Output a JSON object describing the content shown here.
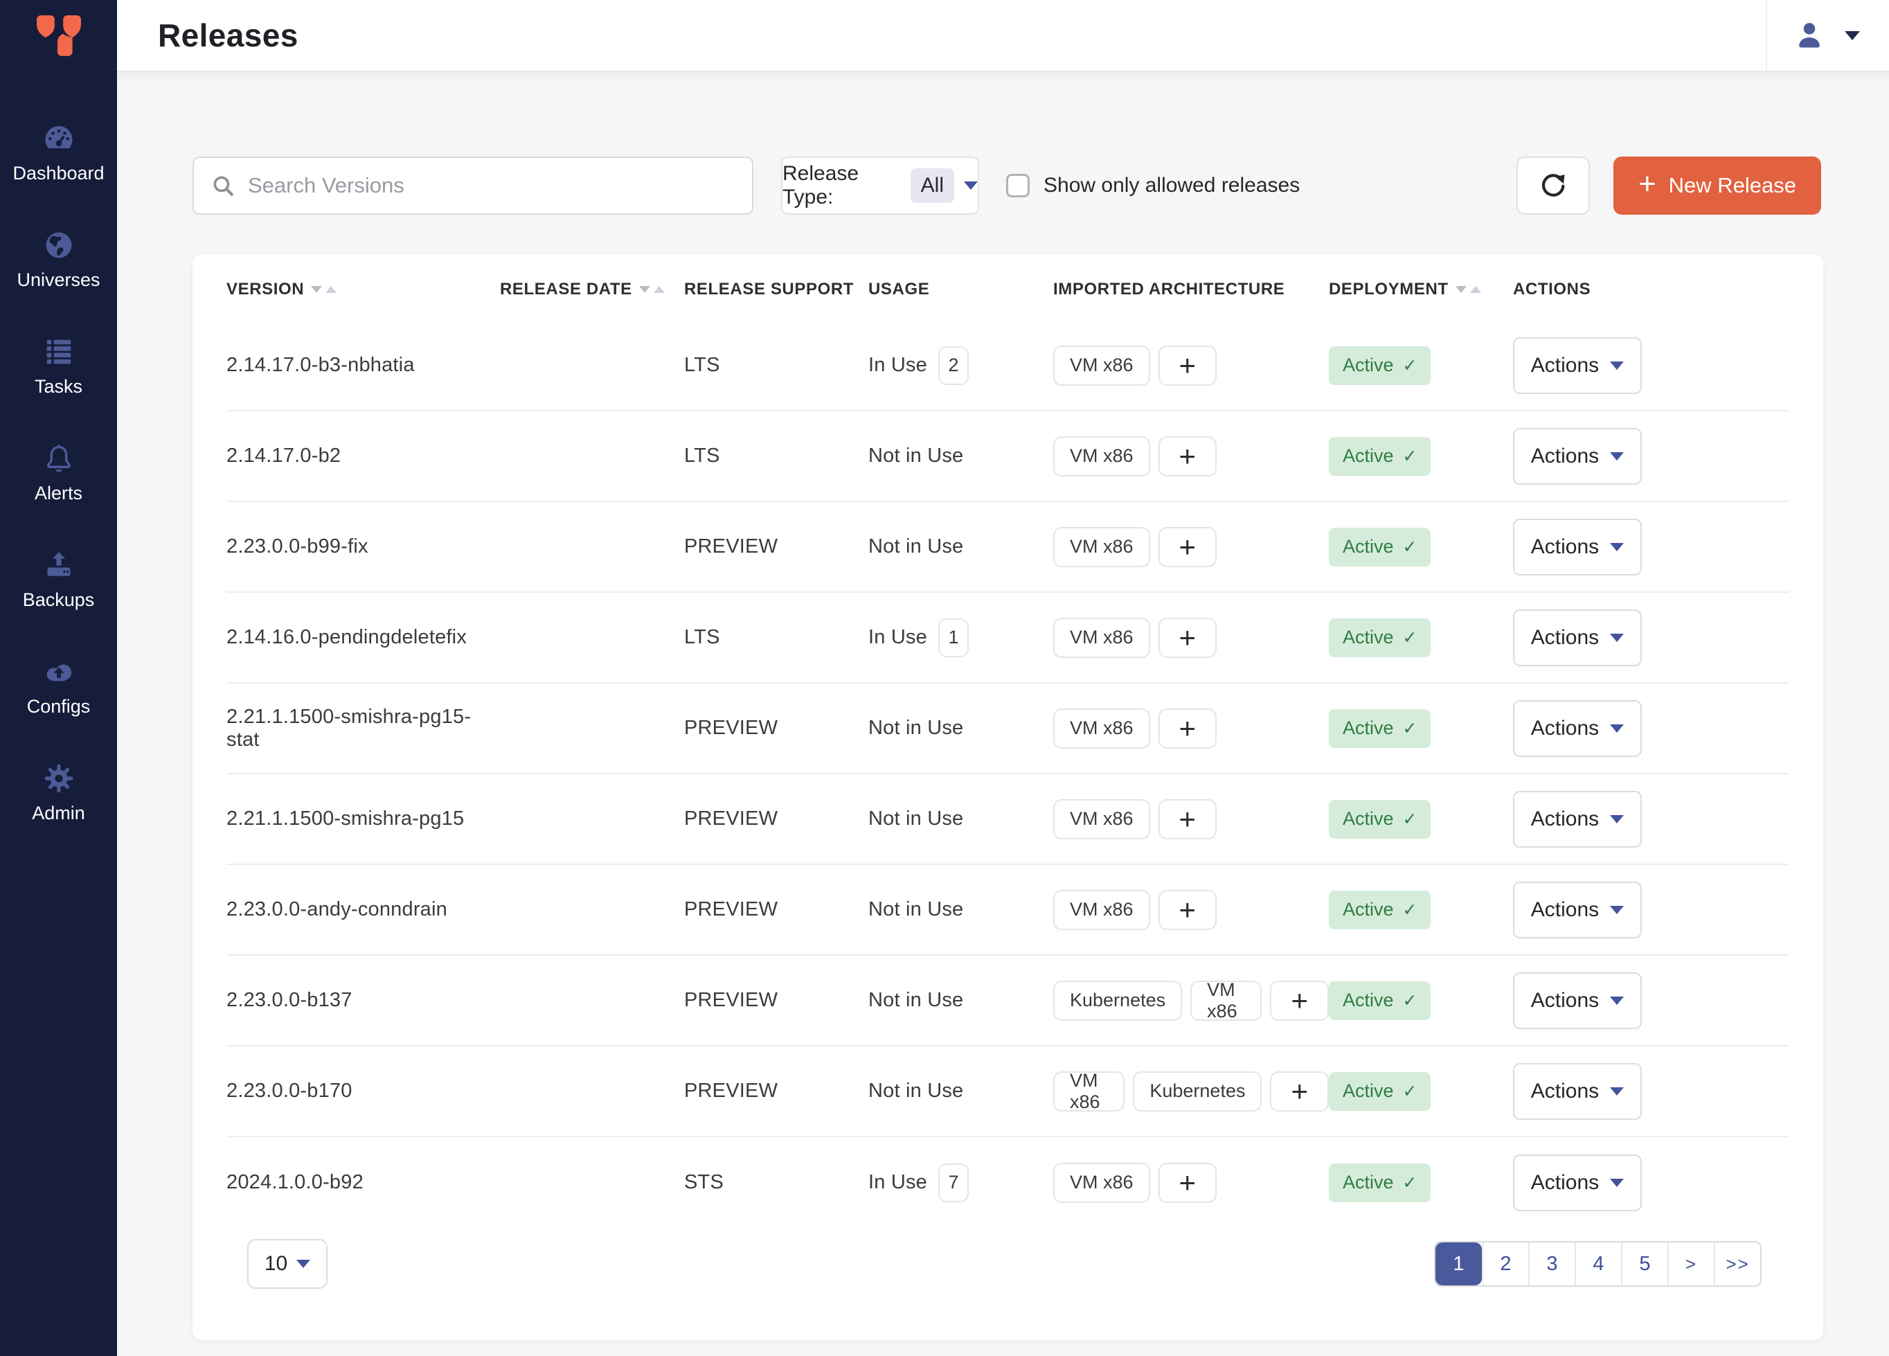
{
  "colors": {
    "sidebar_bg": "#161d3a",
    "sidebar_icon": "#4c5b97",
    "accent_orange": "#e2613e",
    "indigo": "#4a599b",
    "active_badge_bg": "#d6ecda",
    "active_badge_text": "#2e7d44",
    "page_bg": "#f6f6f7"
  },
  "header": {
    "title": "Releases"
  },
  "user_menu": {
    "avatar_icon": "user-icon",
    "caret_icon": "caret-down-icon"
  },
  "sidebar": {
    "items": [
      {
        "icon": "gauge-icon",
        "label": "Dashboard"
      },
      {
        "icon": "globe-icon",
        "label": "Universes"
      },
      {
        "icon": "list-icon",
        "label": "Tasks"
      },
      {
        "icon": "bell-icon",
        "label": "Alerts"
      },
      {
        "icon": "upload-icon",
        "label": "Backups"
      },
      {
        "icon": "cloud-upload-icon",
        "label": "Configs"
      },
      {
        "icon": "gear-icon",
        "label": "Admin"
      }
    ]
  },
  "toolbar": {
    "search_placeholder": "Search Versions",
    "search_icon": "search-icon",
    "release_type_label": "Release Type:",
    "release_type_value": "All",
    "show_allowed_label": "Show only allowed releases",
    "refresh_icon": "refresh-icon",
    "new_release": {
      "plus": "+",
      "label": "New Release"
    }
  },
  "table": {
    "columns": [
      {
        "label": "VERSION",
        "sortable": true
      },
      {
        "label": "RELEASE DATE",
        "sortable": true
      },
      {
        "label": "RELEASE SUPPORT",
        "sortable": false
      },
      {
        "label": "USAGE",
        "sortable": false
      },
      {
        "label": "IMPORTED ARCHITECTURE",
        "sortable": false
      },
      {
        "label": "DEPLOYMENT",
        "sortable": true
      },
      {
        "label": "ACTIONS",
        "sortable": false
      }
    ],
    "plus_label": "+",
    "actions_label": "Actions",
    "active_check": "✓",
    "rows": [
      {
        "version": "2.14.17.0-b3-nbhatia",
        "release_date": "",
        "support": "LTS",
        "usage": "In Use",
        "usage_count": "2",
        "architectures": [
          "VM x86"
        ],
        "deployment": "Active"
      },
      {
        "version": "2.14.17.0-b2",
        "release_date": "",
        "support": "LTS",
        "usage": "Not in Use",
        "usage_count": null,
        "architectures": [
          "VM x86"
        ],
        "deployment": "Active"
      },
      {
        "version": "2.23.0.0-b99-fix",
        "release_date": "",
        "support": "PREVIEW",
        "usage": "Not in Use",
        "usage_count": null,
        "architectures": [
          "VM x86"
        ],
        "deployment": "Active"
      },
      {
        "version": "2.14.16.0-pendingdeletefix",
        "release_date": "",
        "support": "LTS",
        "usage": "In Use",
        "usage_count": "1",
        "architectures": [
          "VM x86"
        ],
        "deployment": "Active"
      },
      {
        "version": "2.21.1.1500-smishra-pg15-stat",
        "release_date": "",
        "support": "PREVIEW",
        "usage": "Not in Use",
        "usage_count": null,
        "architectures": [
          "VM x86"
        ],
        "deployment": "Active"
      },
      {
        "version": "2.21.1.1500-smishra-pg15",
        "release_date": "",
        "support": "PREVIEW",
        "usage": "Not in Use",
        "usage_count": null,
        "architectures": [
          "VM x86"
        ],
        "deployment": "Active"
      },
      {
        "version": "2.23.0.0-andy-conndrain",
        "release_date": "",
        "support": "PREVIEW",
        "usage": "Not in Use",
        "usage_count": null,
        "architectures": [
          "VM x86"
        ],
        "deployment": "Active"
      },
      {
        "version": "2.23.0.0-b137",
        "release_date": "",
        "support": "PREVIEW",
        "usage": "Not in Use",
        "usage_count": null,
        "architectures": [
          "Kubernetes",
          "VM x86"
        ],
        "deployment": "Active"
      },
      {
        "version": "2.23.0.0-b170",
        "release_date": "",
        "support": "PREVIEW",
        "usage": "Not in Use",
        "usage_count": null,
        "architectures": [
          "VM x86",
          "Kubernetes"
        ],
        "deployment": "Active"
      },
      {
        "version": "2024.1.0.0-b92",
        "release_date": "",
        "support": "STS",
        "usage": "In Use",
        "usage_count": "7",
        "architectures": [
          "VM x86"
        ],
        "deployment": "Active"
      }
    ]
  },
  "pagination": {
    "page_size": "10",
    "pages": [
      "1",
      "2",
      "3",
      "4",
      "5"
    ],
    "active_page": "1",
    "next_label": ">",
    "last_label": ">>"
  }
}
